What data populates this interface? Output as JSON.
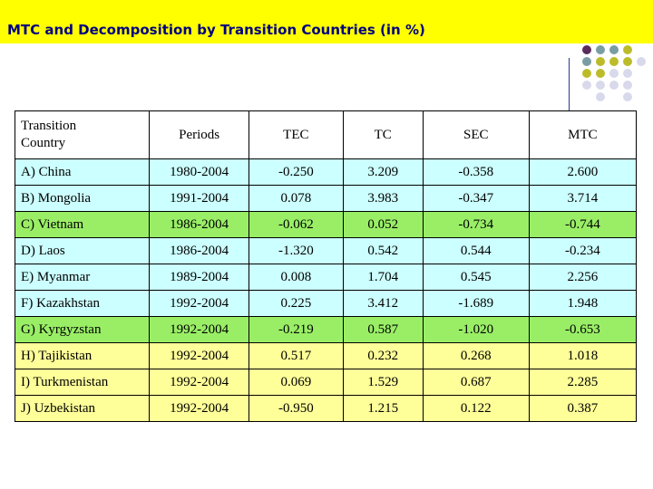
{
  "title": "MTC and Decomposition by Transition Countries (in %)",
  "colors": {
    "title_bar": "#ffff00",
    "title_text": "#000080",
    "row_cyan": "#ccffff",
    "row_green": "#99ee66",
    "row_yellow": "#ffff99",
    "dot_purple": "#5b2b5b",
    "dot_teal": "#7a9da3",
    "dot_olive": "#bcbc2a",
    "dot_lavender": "#d9d9ec"
  },
  "table": {
    "headers": [
      "Transition\nCountry",
      "Periods",
      "TEC",
      "TC",
      "SEC",
      "MTC"
    ],
    "rows": [
      {
        "country": "A) China",
        "period": "1980-2004",
        "tec": "-0.250",
        "tc": "3.209",
        "sec": "-0.358",
        "mtc": "2.600",
        "band": "cyan"
      },
      {
        "country": "B) Mongolia",
        "period": "1991-2004",
        "tec": "0.078",
        "tc": "3.983",
        "sec": "-0.347",
        "mtc": "3.714",
        "band": "cyan"
      },
      {
        "country": "C) Vietnam",
        "period": "1986-2004",
        "tec": "-0.062",
        "tc": "0.052",
        "sec": "-0.734",
        "mtc": "-0.744",
        "band": "green"
      },
      {
        "country": "D) Laos",
        "period": "1986-2004",
        "tec": "-1.320",
        "tc": "0.542",
        "sec": "0.544",
        "mtc": "-0.234",
        "band": "cyan"
      },
      {
        "country": "E) Myanmar",
        "period": "1989-2004",
        "tec": "0.008",
        "tc": "1.704",
        "sec": "0.545",
        "mtc": "2.256",
        "band": "cyan"
      },
      {
        "country": "F) Kazakhstan",
        "period": "1992-2004",
        "tec": "0.225",
        "tc": "3.412",
        "sec": "-1.689",
        "mtc": "1.948",
        "band": "cyan"
      },
      {
        "country": "G) Kyrgyzstan",
        "period": "1992-2004",
        "tec": "-0.219",
        "tc": "0.587",
        "sec": "-1.020",
        "mtc": "-0.653",
        "band": "green"
      },
      {
        "country": "H) Tajikistan",
        "period": "1992-2004",
        "tec": "0.517",
        "tc": "0.232",
        "sec": "0.268",
        "mtc": "1.018",
        "band": "yellow"
      },
      {
        "country": "I) Turkmenistan",
        "period": "1992-2004",
        "tec": "0.069",
        "tc": "1.529",
        "sec": "0.687",
        "mtc": "2.285",
        "band": "yellow"
      },
      {
        "country": "J) Uzbekistan",
        "period": "1992-2004",
        "tec": "-0.950",
        "tc": "1.215",
        "sec": "0.122",
        "mtc": "0.387",
        "band": "yellow"
      }
    ]
  },
  "decoration": {
    "dot_grid": [
      [
        "purple",
        "teal",
        "teal",
        "olive",
        null
      ],
      [
        "teal",
        "olive",
        "olive",
        "olive",
        "lavender"
      ],
      [
        "olive",
        "olive",
        "lavender",
        "lavender",
        null
      ],
      [
        "lavender",
        "lavender",
        "lavender",
        "lavender",
        null
      ],
      [
        null,
        "lavender",
        null,
        "lavender",
        null
      ]
    ]
  }
}
